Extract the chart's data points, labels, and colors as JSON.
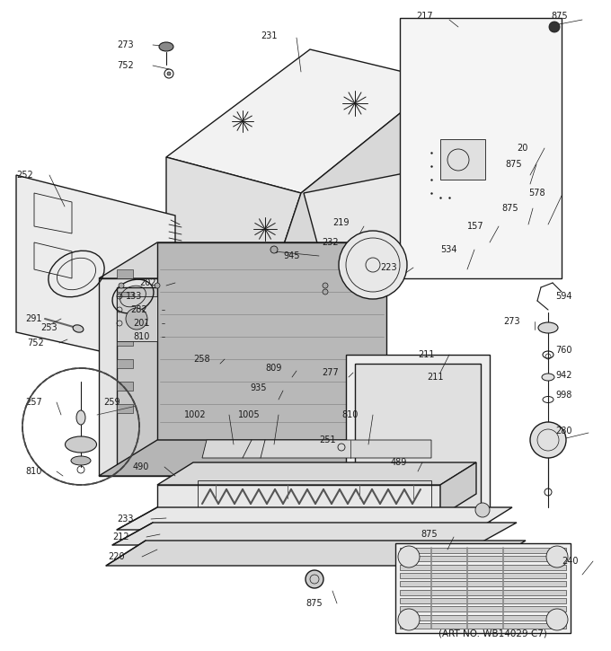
{
  "art_no": "(ART NO. WB14029 C7)",
  "bg_color": "#ffffff",
  "lc": "#1a1a1a",
  "fig_width": 6.8,
  "fig_height": 7.25,
  "dpi": 100
}
